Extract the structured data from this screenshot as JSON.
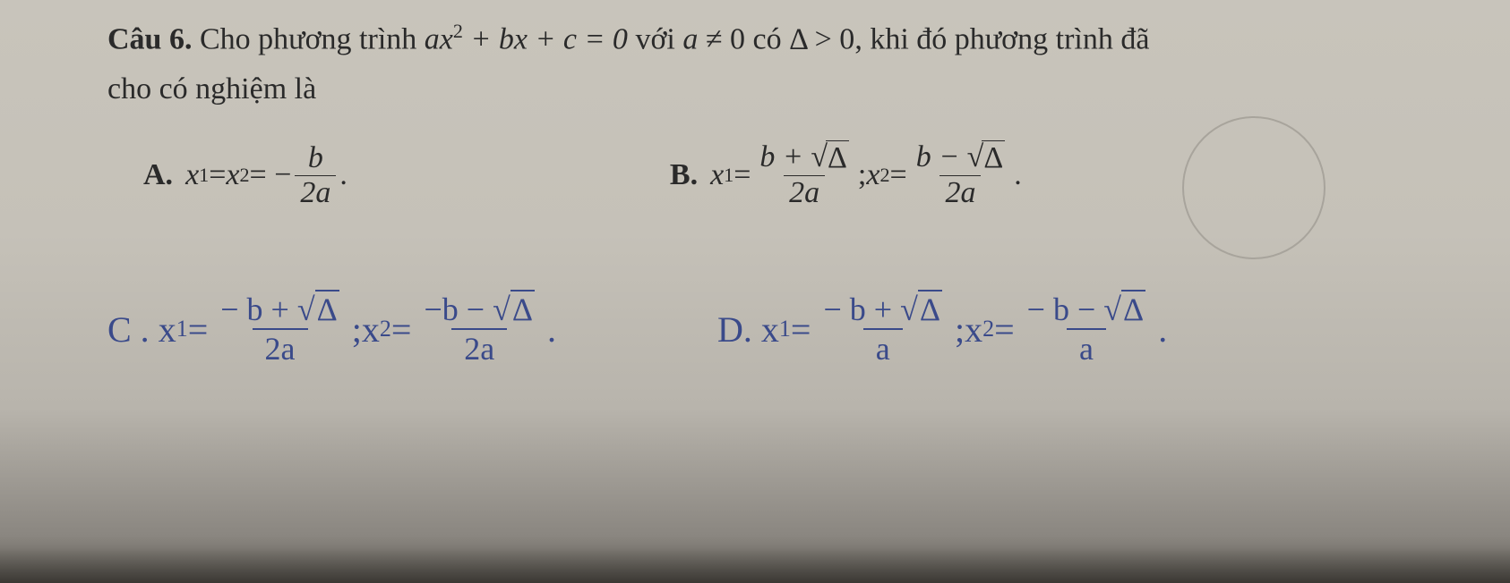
{
  "question": {
    "label": "Câu 6.",
    "text_part1": "Cho phương trình ",
    "eq": "ax",
    "eq_exp": "2",
    "eq_rest": " + bx + c = 0",
    "with": " với ",
    "cond_a": "a",
    "neq": " ≠ 0",
    "has": " có ",
    "delta": "Δ > 0",
    "tail": ", khi đó phương trình đã",
    "line2": "cho có nghiệm là"
  },
  "optA": {
    "label": "A.",
    "lhs_x1": "x",
    "lhs_s1": "1",
    "eq": " = ",
    "lhs_x2": "x",
    "lhs_s2": "2",
    "eq2": " = −",
    "num": "b",
    "den": "2a",
    "dot": "."
  },
  "optB": {
    "label": "B.",
    "x1": "x",
    "s1": "1",
    "eq": " = ",
    "num1a": "b + ",
    "sqrt": "√",
    "delta": "Δ",
    "den": "2a",
    "sep": "; ",
    "x2": "x",
    "s2": "2",
    "eq2": " = ",
    "num2a": "b − ",
    "dot": "."
  },
  "optC": {
    "label": "C .",
    "x1": "x",
    "s1": "1",
    "eq": " = ",
    "num1": "− b + ",
    "sqrt": "√",
    "delta": "Δ",
    "den": "2a",
    "sep": " ; ",
    "x2t": "x",
    "s2": "2",
    "eq2": "= ",
    "num2": "−b − ",
    "dot": " ."
  },
  "optD": {
    "label": "D.",
    "x1": "x",
    "s1": "1",
    "eq": " = ",
    "num1": "− b + ",
    "sqrt": "√",
    "delta": "Δ",
    "den": "a",
    "sep": " ; ",
    "x2t": "x",
    "s2": "2",
    "eq2": " = ",
    "num2": "− b − ",
    "dot": " ."
  },
  "colors": {
    "print": "#2a2a2a",
    "handwriting": "#3a4a8a",
    "paper_top": "#c8c4bb",
    "circle": "#a8a49c"
  }
}
